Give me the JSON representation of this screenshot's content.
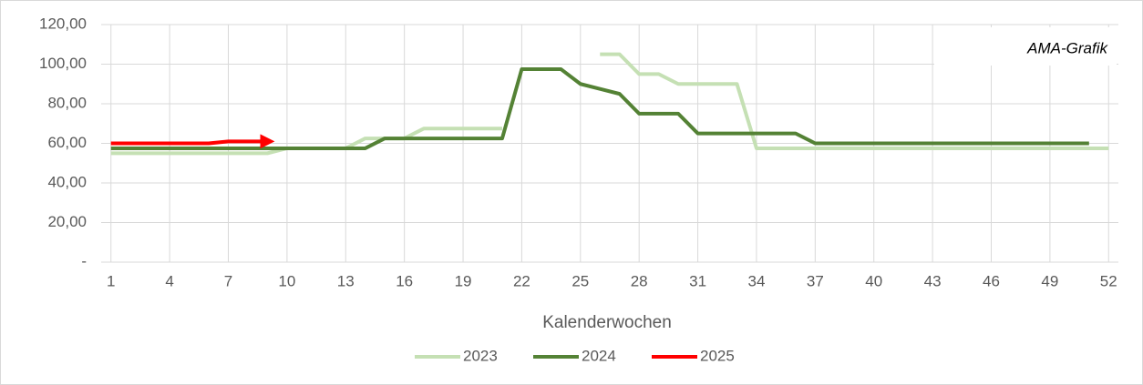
{
  "chart_data": {
    "type": "line",
    "annotation": "AMA-Grafik",
    "x_label": "Kalenderwochen",
    "x": [
      1,
      2,
      3,
      4,
      5,
      6,
      7,
      8,
      9,
      10,
      11,
      12,
      13,
      14,
      15,
      16,
      17,
      18,
      19,
      20,
      21,
      22,
      23,
      24,
      25,
      26,
      27,
      28,
      29,
      30,
      31,
      32,
      33,
      34,
      35,
      36,
      37,
      38,
      39,
      40,
      41,
      42,
      43,
      44,
      45,
      46,
      47,
      48,
      49,
      50,
      51,
      52
    ],
    "xlim": [
      0.5,
      52.5
    ],
    "xticks": [
      1,
      4,
      7,
      10,
      13,
      16,
      19,
      22,
      25,
      28,
      31,
      34,
      37,
      40,
      43,
      46,
      49,
      52
    ],
    "ylim": [
      0,
      120
    ],
    "yticks": [
      {
        "value": 0,
        "label": "-"
      },
      {
        "value": 20,
        "label": "20,00"
      },
      {
        "value": 40,
        "label": "40,00"
      },
      {
        "value": 60,
        "label": "60,00"
      },
      {
        "value": 80,
        "label": "80,00"
      },
      {
        "value": 100,
        "label": "100,00"
      },
      {
        "value": 120,
        "label": "120,00"
      }
    ],
    "grid": true,
    "legend": "bottom",
    "series": [
      {
        "name": "2023",
        "color": "#c5e0b4",
        "values": [
          55,
          55,
          55,
          55,
          55,
          55,
          55,
          55,
          55,
          57.5,
          57.5,
          57.5,
          57.5,
          62.5,
          62.5,
          62.5,
          67.5,
          67.5,
          67.5,
          67.5,
          67.5,
          null,
          null,
          null,
          null,
          105,
          105,
          95,
          95,
          90,
          90,
          90,
          90,
          57.5,
          57.5,
          57.5,
          57.5,
          57.5,
          57.5,
          57.5,
          57.5,
          57.5,
          57.5,
          57.5,
          57.5,
          57.5,
          57.5,
          57.5,
          57.5,
          57.5,
          57.5,
          57.5
        ]
      },
      {
        "name": "2024",
        "color": "#548235",
        "values": [
          57.5,
          57.5,
          57.5,
          57.5,
          57.5,
          57.5,
          57.5,
          57.5,
          57.5,
          57.5,
          57.5,
          57.5,
          57.5,
          57.5,
          62.5,
          62.5,
          62.5,
          62.5,
          62.5,
          62.5,
          62.5,
          97.5,
          97.5,
          97.5,
          90,
          87.5,
          85,
          75,
          75,
          75,
          65,
          65,
          65,
          65,
          65,
          65,
          60,
          60,
          60,
          60,
          60,
          60,
          60,
          60,
          60,
          60,
          60,
          60,
          60,
          60,
          60,
          null
        ]
      },
      {
        "name": "2025",
        "color": "#ff0000",
        "values": [
          60,
          60,
          60,
          60,
          60,
          60,
          61,
          61,
          61,
          null,
          null,
          null,
          null,
          null,
          null,
          null,
          null,
          null,
          null,
          null,
          null,
          null,
          null,
          null,
          null,
          null,
          null,
          null,
          null,
          null,
          null,
          null,
          null,
          null,
          null,
          null,
          null,
          null,
          null,
          null,
          null,
          null,
          null,
          null,
          null,
          null,
          null,
          null,
          null,
          null,
          null,
          null
        ]
      }
    ]
  }
}
